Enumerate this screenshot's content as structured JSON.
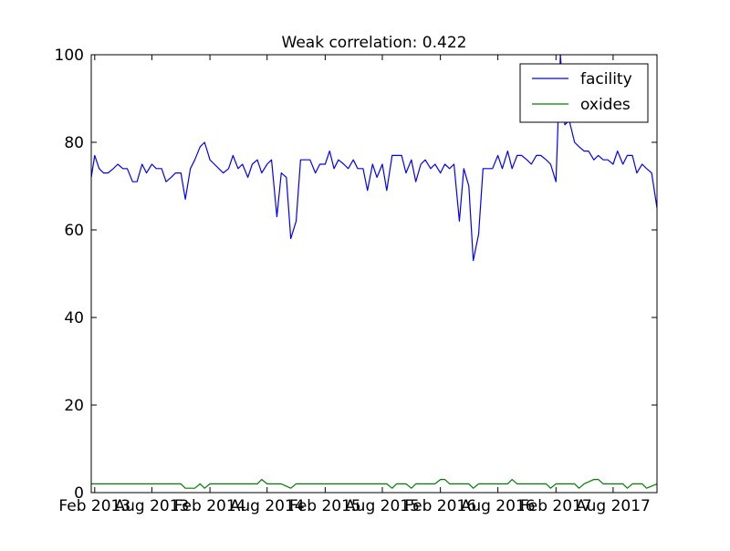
{
  "chart_data": {
    "type": "line",
    "title": "Weak correlation: 0.422",
    "xlabel": "",
    "ylabel": "",
    "xlim": [
      "2013-01-21",
      "2017-12-18"
    ],
    "ylim": [
      0,
      100
    ],
    "x_ticks": [
      {
        "date": "2013-02-01",
        "label": "Feb 2013"
      },
      {
        "date": "2013-08-01",
        "label": "Aug 2013"
      },
      {
        "date": "2014-02-01",
        "label": "Feb 2014"
      },
      {
        "date": "2014-08-01",
        "label": "Aug 2014"
      },
      {
        "date": "2015-02-01",
        "label": "Feb 2015"
      },
      {
        "date": "2015-08-01",
        "label": "Aug 2015"
      },
      {
        "date": "2016-02-01",
        "label": "Feb 2016"
      },
      {
        "date": "2016-08-01",
        "label": "Aug 2016"
      },
      {
        "date": "2017-02-01",
        "label": "Feb 2017"
      },
      {
        "date": "2017-08-01",
        "label": "Aug 2017"
      }
    ],
    "y_ticks": [
      0,
      20,
      40,
      60,
      80,
      100
    ],
    "grid": false,
    "legend_position": "top-right",
    "series": [
      {
        "name": "facility",
        "color": "#0000ff",
        "points": [
          [
            "2013-01-21",
            72
          ],
          [
            "2013-02-01",
            77
          ],
          [
            "2013-02-15",
            74
          ],
          [
            "2013-03-01",
            73
          ],
          [
            "2013-03-15",
            73
          ],
          [
            "2013-04-01",
            74
          ],
          [
            "2013-04-15",
            75
          ],
          [
            "2013-05-01",
            74
          ],
          [
            "2013-05-15",
            74
          ],
          [
            "2013-06-01",
            71
          ],
          [
            "2013-06-15",
            71
          ],
          [
            "2013-07-01",
            75
          ],
          [
            "2013-07-15",
            73
          ],
          [
            "2013-08-01",
            75
          ],
          [
            "2013-08-15",
            74
          ],
          [
            "2013-09-01",
            74
          ],
          [
            "2013-09-15",
            71
          ],
          [
            "2013-10-01",
            72
          ],
          [
            "2013-10-15",
            73
          ],
          [
            "2013-11-01",
            73
          ],
          [
            "2013-11-15",
            67
          ],
          [
            "2013-12-01",
            74
          ],
          [
            "2013-12-15",
            76
          ],
          [
            "2014-01-01",
            79
          ],
          [
            "2014-01-15",
            80
          ],
          [
            "2014-02-01",
            76
          ],
          [
            "2014-02-15",
            75
          ],
          [
            "2014-03-01",
            74
          ],
          [
            "2014-03-15",
            73
          ],
          [
            "2014-04-01",
            74
          ],
          [
            "2014-04-15",
            77
          ],
          [
            "2014-05-01",
            74
          ],
          [
            "2014-05-15",
            75
          ],
          [
            "2014-06-01",
            72
          ],
          [
            "2014-06-15",
            75
          ],
          [
            "2014-07-01",
            76
          ],
          [
            "2014-07-15",
            73
          ],
          [
            "2014-08-01",
            75
          ],
          [
            "2014-08-15",
            76
          ],
          [
            "2014-09-01",
            63
          ],
          [
            "2014-09-15",
            73
          ],
          [
            "2014-10-01",
            72
          ],
          [
            "2014-10-15",
            58
          ],
          [
            "2014-11-01",
            62
          ],
          [
            "2014-11-15",
            76
          ],
          [
            "2014-12-01",
            76
          ],
          [
            "2014-12-15",
            76
          ],
          [
            "2015-01-01",
            73
          ],
          [
            "2015-01-15",
            75
          ],
          [
            "2015-02-01",
            75
          ],
          [
            "2015-02-15",
            78
          ],
          [
            "2015-03-01",
            74
          ],
          [
            "2015-03-15",
            76
          ],
          [
            "2015-04-01",
            75
          ],
          [
            "2015-04-15",
            74
          ],
          [
            "2015-05-01",
            76
          ],
          [
            "2015-05-15",
            74
          ],
          [
            "2015-06-01",
            74
          ],
          [
            "2015-06-15",
            69
          ],
          [
            "2015-07-01",
            75
          ],
          [
            "2015-07-15",
            72
          ],
          [
            "2015-08-01",
            75
          ],
          [
            "2015-08-15",
            69
          ],
          [
            "2015-09-01",
            77
          ],
          [
            "2015-09-15",
            77
          ],
          [
            "2015-10-01",
            77
          ],
          [
            "2015-10-15",
            73
          ],
          [
            "2015-11-01",
            76
          ],
          [
            "2015-11-15",
            71
          ],
          [
            "2015-12-01",
            75
          ],
          [
            "2015-12-15",
            76
          ],
          [
            "2016-01-01",
            74
          ],
          [
            "2016-01-15",
            75
          ],
          [
            "2016-02-01",
            73
          ],
          [
            "2016-02-15",
            75
          ],
          [
            "2016-03-01",
            74
          ],
          [
            "2016-03-15",
            75
          ],
          [
            "2016-04-01",
            62
          ],
          [
            "2016-04-15",
            74
          ],
          [
            "2016-05-01",
            70
          ],
          [
            "2016-05-15",
            53
          ],
          [
            "2016-06-01",
            59
          ],
          [
            "2016-06-15",
            74
          ],
          [
            "2016-07-01",
            74
          ],
          [
            "2016-07-15",
            74
          ],
          [
            "2016-08-01",
            77
          ],
          [
            "2016-08-15",
            74
          ],
          [
            "2016-09-01",
            78
          ],
          [
            "2016-09-15",
            74
          ],
          [
            "2016-10-01",
            77
          ],
          [
            "2016-10-15",
            77
          ],
          [
            "2016-11-01",
            76
          ],
          [
            "2016-11-15",
            75
          ],
          [
            "2016-12-01",
            77
          ],
          [
            "2016-12-15",
            77
          ],
          [
            "2017-01-01",
            76
          ],
          [
            "2017-01-15",
            75
          ],
          [
            "2017-02-01",
            71
          ],
          [
            "2017-02-15",
            100
          ],
          [
            "2017-03-01",
            84
          ],
          [
            "2017-03-15",
            85
          ],
          [
            "2017-04-01",
            80
          ],
          [
            "2017-04-15",
            79
          ],
          [
            "2017-05-01",
            78
          ],
          [
            "2017-05-15",
            78
          ],
          [
            "2017-06-01",
            76
          ],
          [
            "2017-06-15",
            77
          ],
          [
            "2017-07-01",
            76
          ],
          [
            "2017-07-15",
            76
          ],
          [
            "2017-08-01",
            75
          ],
          [
            "2017-08-15",
            78
          ],
          [
            "2017-09-01",
            75
          ],
          [
            "2017-09-15",
            77
          ],
          [
            "2017-10-01",
            77
          ],
          [
            "2017-10-15",
            73
          ],
          [
            "2017-11-01",
            75
          ],
          [
            "2017-11-15",
            74
          ],
          [
            "2017-12-01",
            73
          ],
          [
            "2017-12-18",
            65
          ]
        ]
      },
      {
        "name": "oxides",
        "color": "#008000",
        "points": [
          [
            "2013-01-21",
            2
          ],
          [
            "2013-02-15",
            2
          ],
          [
            "2013-04-01",
            2
          ],
          [
            "2013-06-01",
            2
          ],
          [
            "2013-08-01",
            2
          ],
          [
            "2013-10-01",
            2
          ],
          [
            "2013-11-01",
            2
          ],
          [
            "2013-11-15",
            1
          ],
          [
            "2013-12-15",
            1
          ],
          [
            "2014-01-01",
            2
          ],
          [
            "2014-01-15",
            1
          ],
          [
            "2014-02-01",
            2
          ],
          [
            "2014-03-01",
            2
          ],
          [
            "2014-04-15",
            2
          ],
          [
            "2014-06-01",
            2
          ],
          [
            "2014-07-01",
            2
          ],
          [
            "2014-07-15",
            3
          ],
          [
            "2014-08-01",
            2
          ],
          [
            "2014-09-15",
            2
          ],
          [
            "2014-10-15",
            1
          ],
          [
            "2014-11-01",
            2
          ],
          [
            "2014-12-01",
            2
          ],
          [
            "2015-03-01",
            2
          ],
          [
            "2015-05-01",
            2
          ],
          [
            "2015-07-01",
            2
          ],
          [
            "2015-08-15",
            2
          ],
          [
            "2015-09-01",
            1
          ],
          [
            "2015-09-15",
            2
          ],
          [
            "2015-10-15",
            2
          ],
          [
            "2015-11-01",
            1
          ],
          [
            "2015-11-15",
            2
          ],
          [
            "2015-12-15",
            2
          ],
          [
            "2016-01-15",
            2
          ],
          [
            "2016-02-01",
            3
          ],
          [
            "2016-02-15",
            3
          ],
          [
            "2016-03-01",
            2
          ],
          [
            "2016-04-01",
            2
          ],
          [
            "2016-05-01",
            2
          ],
          [
            "2016-05-15",
            1
          ],
          [
            "2016-06-01",
            2
          ],
          [
            "2016-07-01",
            2
          ],
          [
            "2016-08-01",
            2
          ],
          [
            "2016-09-01",
            2
          ],
          [
            "2016-09-15",
            3
          ],
          [
            "2016-10-01",
            2
          ],
          [
            "2016-11-01",
            2
          ],
          [
            "2016-12-01",
            2
          ],
          [
            "2017-01-01",
            2
          ],
          [
            "2017-01-15",
            1
          ],
          [
            "2017-02-01",
            2
          ],
          [
            "2017-03-01",
            2
          ],
          [
            "2017-04-01",
            2
          ],
          [
            "2017-04-15",
            1
          ],
          [
            "2017-05-01",
            2
          ],
          [
            "2017-06-01",
            3
          ],
          [
            "2017-06-15",
            3
          ],
          [
            "2017-07-01",
            2
          ],
          [
            "2017-08-01",
            2
          ],
          [
            "2017-08-15",
            2
          ],
          [
            "2017-09-01",
            2
          ],
          [
            "2017-09-15",
            1
          ],
          [
            "2017-10-01",
            2
          ],
          [
            "2017-11-01",
            2
          ],
          [
            "2017-11-15",
            1
          ],
          [
            "2017-12-18",
            2
          ]
        ]
      }
    ]
  }
}
